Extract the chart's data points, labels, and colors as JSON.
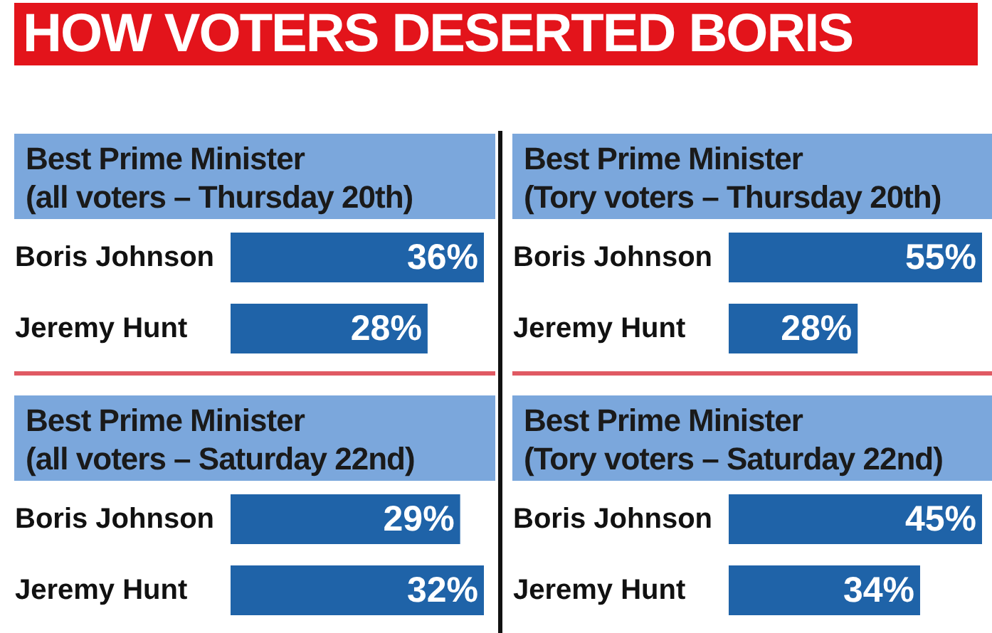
{
  "chart_data": [
    {
      "type": "other",
      "title": "HOW VOTERS DESERTED BORIS"
    },
    {
      "type": "bar",
      "orientation": "horizontal",
      "title": "Best Prime Minister",
      "subtitle": "(all voters – Thursday 20th)",
      "categories": [
        "Boris Johnson",
        "Jeremy Hunt"
      ],
      "values": [
        36,
        28
      ],
      "value_labels": [
        "36%",
        "28%"
      ],
      "color": "#1f63a8"
    },
    {
      "type": "bar",
      "orientation": "horizontal",
      "title": "Best Prime Minister",
      "subtitle": "(Tory voters – Thursday 20th)",
      "categories": [
        "Boris Johnson",
        "Jeremy Hunt"
      ],
      "values": [
        55,
        28
      ],
      "value_labels": [
        "55%",
        "28%"
      ],
      "color": "#1f63a8"
    },
    {
      "type": "bar",
      "orientation": "horizontal",
      "title": "Best Prime Minister",
      "subtitle": "(all voters – Saturday 22nd)",
      "categories": [
        "Boris Johnson",
        "Jeremy Hunt"
      ],
      "values": [
        29,
        32
      ],
      "value_labels": [
        "29%",
        "32%"
      ],
      "color": "#1f63a8"
    },
    {
      "type": "bar",
      "orientation": "horizontal",
      "title": "Best Prime Minister",
      "subtitle": "(Tory voters – Saturday 22nd)",
      "categories": [
        "Boris Johnson",
        "Jeremy Hunt"
      ],
      "values": [
        45,
        34
      ],
      "value_labels": [
        "45%",
        "34%"
      ],
      "color": "#1f63a8"
    }
  ]
}
